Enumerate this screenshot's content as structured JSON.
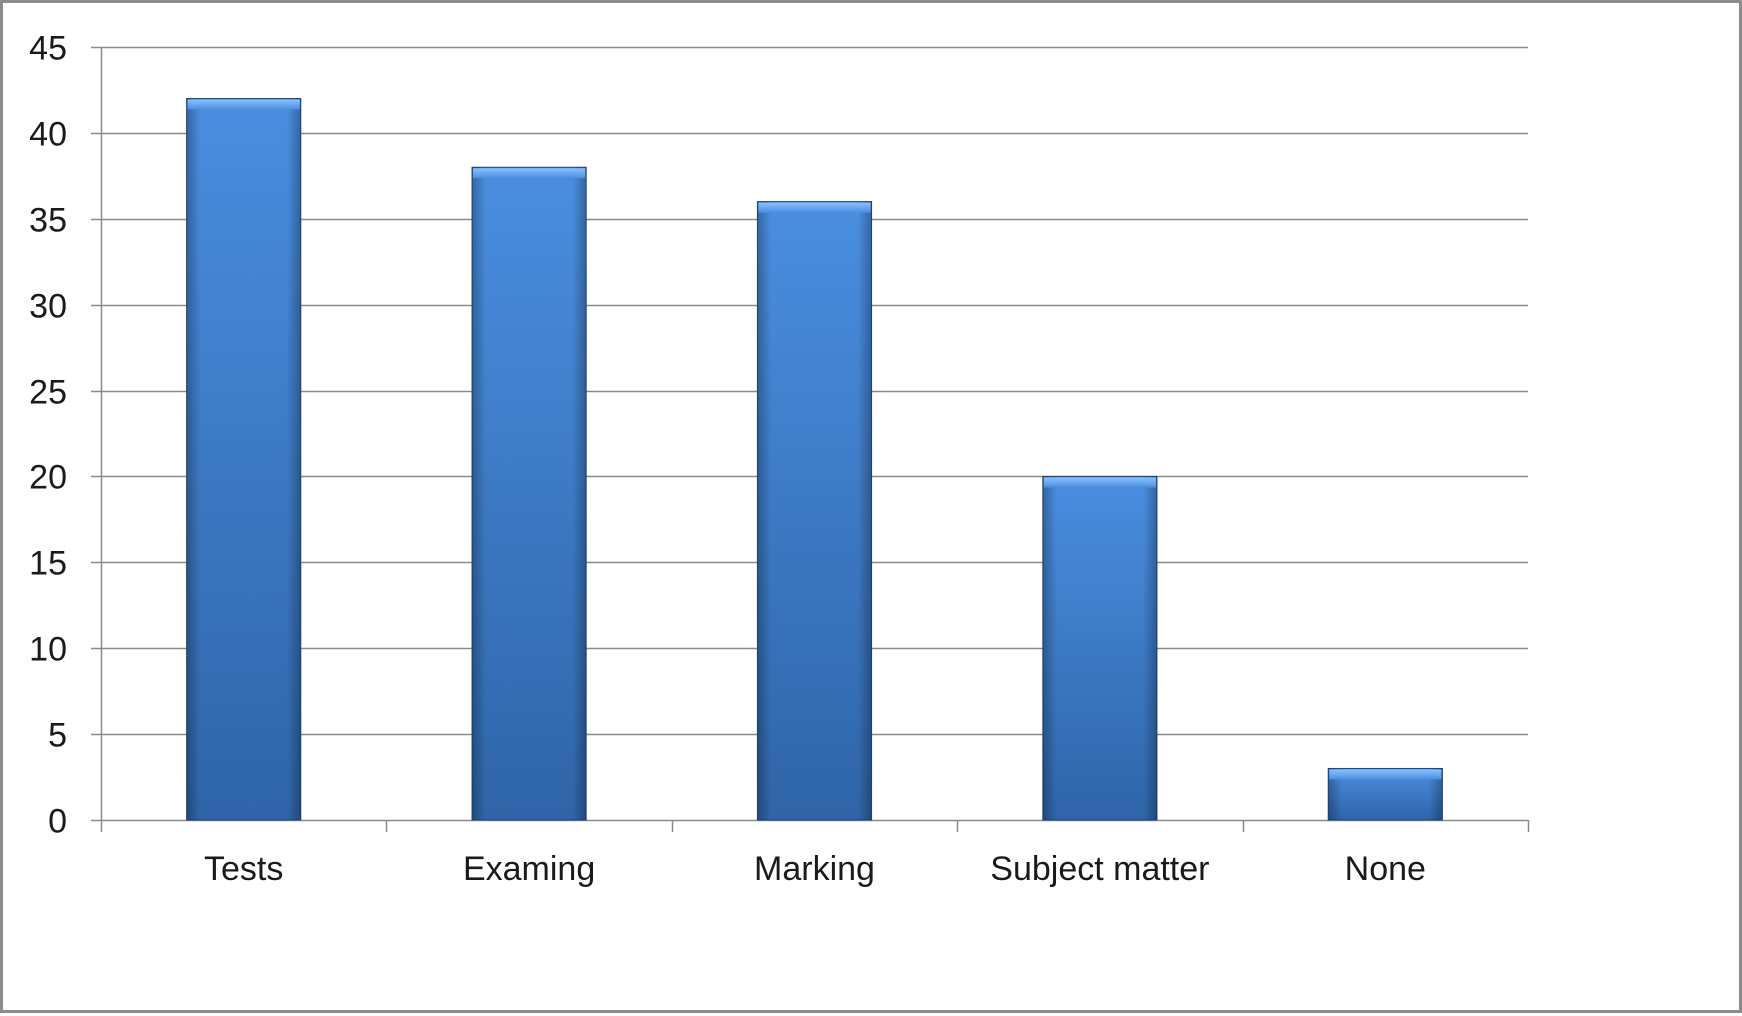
{
  "chart_data": {
    "type": "bar",
    "title": "",
    "xlabel": "",
    "ylabel": "",
    "categories": [
      "Tests",
      "Examing",
      "Marking",
      "Subject matter",
      "None"
    ],
    "values": [
      42,
      38,
      36,
      20,
      3
    ],
    "ylim": [
      0,
      45
    ],
    "yticks": [
      "0",
      "5",
      "10",
      "15",
      "20",
      "25",
      "30",
      "35",
      "40",
      "45"
    ],
    "grid": true,
    "legend": "none",
    "colors": {
      "bar_light": "#5a9ae6",
      "bar_main": "#3f7fcf",
      "bar_dark": "#2b5c9a",
      "bar_edge": "#1f4a80",
      "gridline": "#8a8a8a",
      "axis": "#8a8a8a"
    }
  }
}
